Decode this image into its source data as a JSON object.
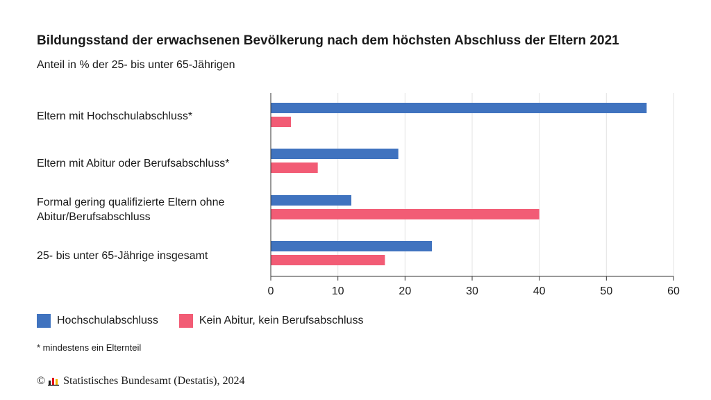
{
  "header": {
    "title": "Bildungsstand der erwachsenen Bevölkerung nach dem höchsten Abschluss der Eltern 2021",
    "subtitle": "Anteil in % der 25- bis unter 65-Jährigen"
  },
  "chart_data": {
    "type": "bar",
    "orientation": "horizontal",
    "categories": [
      "Eltern mit Hochschulabschluss*",
      "Eltern mit Abitur oder Berufsabschluss*",
      "Formal gering qualifizierte Eltern ohne Abitur/Berufsabschluss",
      "25- bis unter 65-Jährige insgesamt"
    ],
    "series": [
      {
        "name": "Hochschulabschluss",
        "color": "#4073bf",
        "values": [
          56,
          19,
          12,
          24
        ]
      },
      {
        "name": "Kein Abitur, kein Berufsabschluss",
        "color": "#f25c75",
        "values": [
          3,
          7,
          40,
          17
        ]
      }
    ],
    "xlim": [
      0,
      60
    ],
    "xticks": [
      0,
      10,
      20,
      30,
      40,
      50,
      60
    ],
    "grid": true,
    "legend_position": "bottom-left"
  },
  "footnote": "* mindestens ein Elternteil",
  "source": {
    "copyright": "©",
    "text": "Statistisches Bundesamt (Destatis), 2024"
  }
}
